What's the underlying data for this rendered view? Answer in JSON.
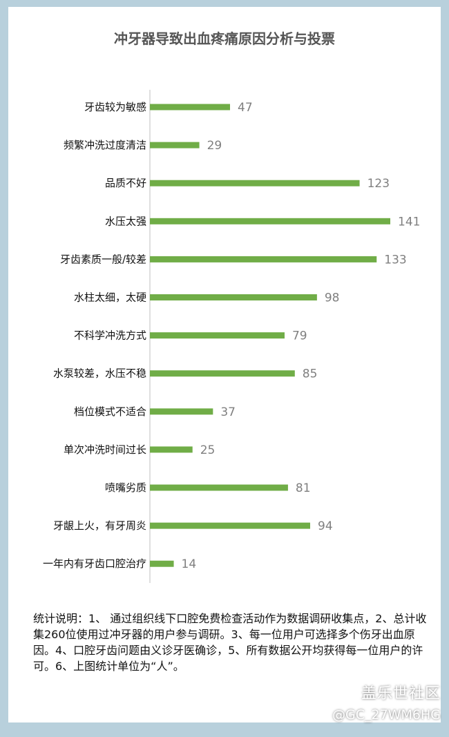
{
  "chart_data": {
    "type": "bar",
    "orientation": "horizontal",
    "title": "冲牙器导致出血疼痛原因分析与投票",
    "categories": [
      "牙齿较为敏感",
      "频繁冲洗过度清洁",
      "品质不好",
      "水压太强",
      "牙齿素质一般/较差",
      "水柱太细，太硬",
      "不科学冲洗方式",
      "水泵较差，水压不稳",
      "档位模式不适合",
      "单次冲洗时间过长",
      "喷嘴劣质",
      "牙龈上火，有牙周炎",
      "一年内有牙齿口腔治疗"
    ],
    "values": [
      47,
      29,
      123,
      141,
      133,
      98,
      79,
      85,
      37,
      25,
      81,
      94,
      14
    ],
    "xlim": [
      0,
      141
    ],
    "bar_color": "#70ad47",
    "value_label_color": "#7f7f7f",
    "data_labels": true,
    "grid": false
  },
  "note": "统计说明：1、 通过组织线下口腔免费检查活动作为数据调研收集点，2、总计收集260位使用过冲牙器的用户参与调研。3、每一位用户可选择多个伤牙出血原因。4、口腔牙齿问题由义诊牙医确诊，5、所有数据公开均获得每一位用户的许可。6、上图统计单位为“人”。",
  "watermark": {
    "brand": "盖乐世社区",
    "handle": "@GC_27WM6HG"
  }
}
